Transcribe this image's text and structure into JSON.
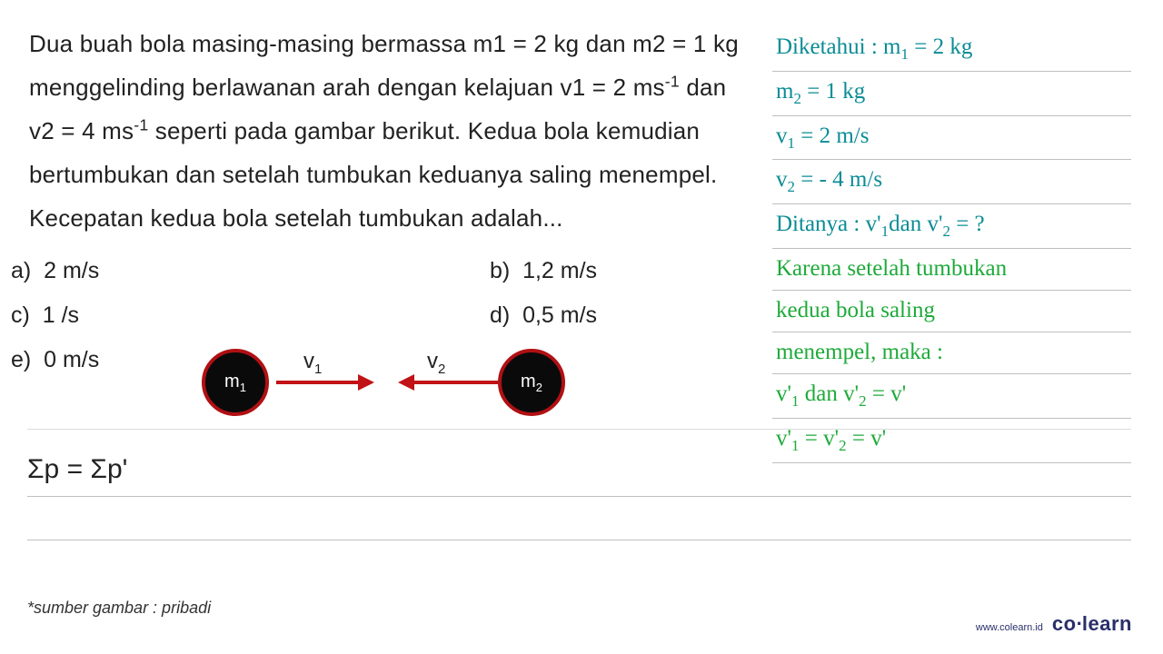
{
  "problem": {
    "text_html": "Dua buah bola masing-masing bermassa m1 = 2 kg dan m2 = 1 kg menggelinding berlawanan arah dengan kelajuan v1 = 2 ms<sup>-1</sup> dan v2 = 4 ms<sup>-1</sup> seperti pada gambar berikut. Kedua bola kemudian bertumbukan dan setelah tumbukan keduanya saling menempel. Kecepatan kedua bola setelah tumbukan adalah..."
  },
  "answers": {
    "a": "2 m/s",
    "b": "1,2 m/s",
    "c": "1 /s",
    "d": "0,5 m/s",
    "e": "0 m/s"
  },
  "diagram": {
    "ball1_label_html": "m<sub>1</sub>",
    "ball2_label_html": "m<sub>2</sub>",
    "v1_label_html": "v<sub>1</sub>",
    "v2_label_html": "v<sub>2</sub>",
    "ball_fill": "#0a0a0a",
    "ball_border": "#b01014",
    "arrow_color": "#c01217"
  },
  "equation_html": "Σp = Σp'",
  "notes": [
    {
      "html": "Diketahui : m<sub>1</sub> = 2 kg",
      "class": "teal"
    },
    {
      "html": "m<sub>2</sub> = 1 kg",
      "class": "teal"
    },
    {
      "html": "v<sub>1</sub> = 2 m/s",
      "class": "teal"
    },
    {
      "html": "v<sub>2</sub> = - 4 m/s",
      "class": "teal"
    },
    {
      "html": "Ditanya : v'<sub>1</sub>dan v'<sub>2</sub> = ?",
      "class": "teal"
    },
    {
      "html": "Karena setelah tumbukan",
      "class": "green"
    },
    {
      "html": "kedua bola saling",
      "class": "green"
    },
    {
      "html": "menempel, maka :",
      "class": "green"
    },
    {
      "html": "v'<sub>1</sub> dan v'<sub>2</sub> = v'",
      "class": "green"
    },
    {
      "html": "v'<sub>1</sub> = v'<sub>2</sub> = v'",
      "class": "green"
    }
  ],
  "source_note": "*sumber gambar : pribadi",
  "brand": {
    "url": "www.colearn.id",
    "logo_html": "co<span class=\"dot\">·</span>learn"
  }
}
